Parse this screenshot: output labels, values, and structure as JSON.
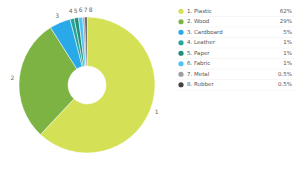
{
  "chart_data": {
    "type": "donut",
    "categories": [
      "1. Plastic",
      "2. Wood",
      "3. Cardboard",
      "4. Leather",
      "5. Paper",
      "6. Fabric",
      "7. Metal",
      "8. Rubber"
    ],
    "values": [
      62,
      29,
      5,
      1,
      1,
      1,
      0.5,
      0.5
    ],
    "value_labels": [
      "62%",
      "29%",
      "5%",
      "1%",
      "1%",
      "1%",
      "0.5%",
      "0.5%"
    ],
    "colors": [
      "#d4e157",
      "#7cb342",
      "#29a9e8",
      "#26a69a",
      "#1f8f7a",
      "#4fc3f7",
      "#9e9e9e",
      "#424242"
    ],
    "legend": "top-right"
  }
}
